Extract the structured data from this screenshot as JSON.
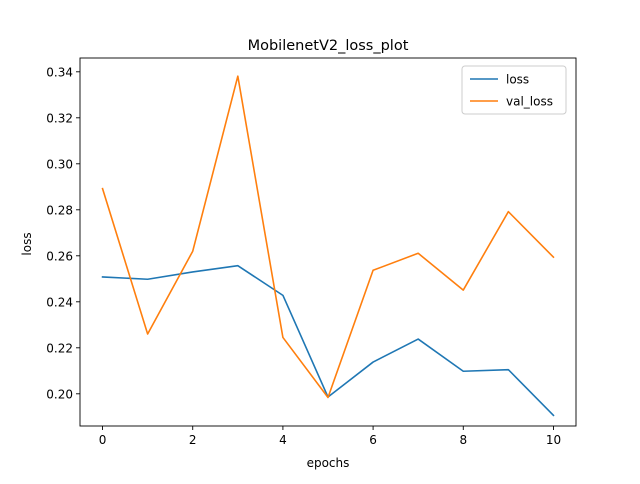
{
  "chart_data": {
    "type": "line",
    "title": "MobilenetV2_loss_plot",
    "xlabel": "epochs",
    "ylabel": "loss",
    "x": [
      0,
      1,
      2,
      3,
      4,
      5,
      6,
      7,
      8,
      9,
      10
    ],
    "xlim": [
      -0.5,
      10.5
    ],
    "ylim": [
      0.186,
      0.346
    ],
    "xticks": [
      0,
      2,
      4,
      6,
      8,
      10
    ],
    "yticks": [
      0.2,
      0.22,
      0.24,
      0.26,
      0.28,
      0.3,
      0.32,
      0.34
    ],
    "grid": false,
    "legend_position": "top-right",
    "series": [
      {
        "name": "loss",
        "color": "#1f77b4",
        "values": [
          0.2508,
          0.2498,
          0.253,
          0.2557,
          0.2428,
          0.1986,
          0.2138,
          0.2238,
          0.2098,
          0.2105,
          0.1906
        ]
      },
      {
        "name": "val_loss",
        "color": "#ff7f0e",
        "values": [
          0.2892,
          0.226,
          0.262,
          0.3381,
          0.2245,
          0.1984,
          0.2537,
          0.2611,
          0.2451,
          0.2792,
          0.2594
        ]
      }
    ]
  }
}
